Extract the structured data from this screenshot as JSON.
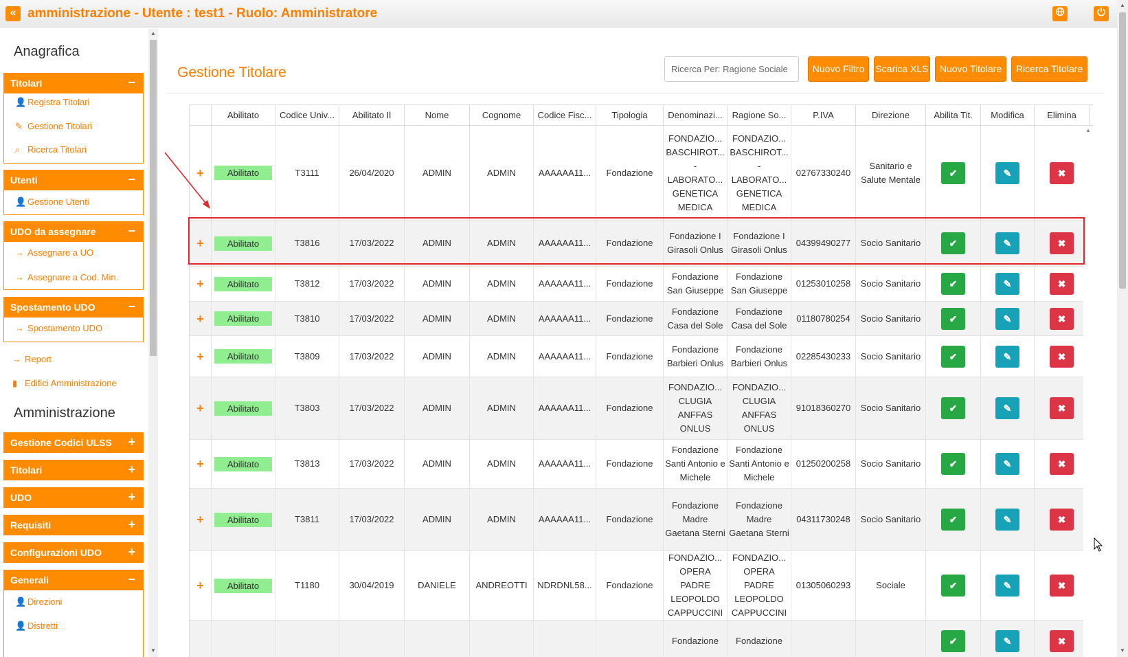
{
  "topbar": {
    "back_icon": "double-chevron-left-icon",
    "title": "amministrazione - Utente : test1 - Ruolo: Amministratore",
    "globe_icon": "globe-icon",
    "power_icon": "power-icon"
  },
  "sidebar": {
    "section1": "Anagrafica",
    "section2": "Amministrazione",
    "groups": {
      "titolari": {
        "label": "Titolari",
        "toggle": "−",
        "links": [
          "Registra Titolari",
          "Gestione Titolari",
          "Ricerca Titolari"
        ]
      },
      "utenti": {
        "label": "Utenti",
        "toggle": "−",
        "links": [
          "Gestione Utenti"
        ]
      },
      "udo": {
        "label": "UDO da assegnare",
        "toggle": "−",
        "links": [
          "Assegnare a UO",
          "Assegnare a Cod. Min."
        ]
      },
      "spostamento": {
        "label": "Spostamento UDO",
        "toggle": "−",
        "links": [
          "Spostamento UDO"
        ]
      },
      "generali": {
        "label": "Generali",
        "toggle": "−",
        "links": [
          "Direzioni",
          "Distretti"
        ]
      }
    },
    "plain_links": [
      "Report",
      "Edifici Amministrazione"
    ],
    "admin_groups": [
      {
        "label": "Gestione Codici ULSS",
        "toggle": "+"
      },
      {
        "label": "Titolari",
        "toggle": "+"
      },
      {
        "label": "UDO",
        "toggle": "+"
      },
      {
        "label": "Requisiti",
        "toggle": "+"
      },
      {
        "label": "Configurazioni UDO",
        "toggle": "+"
      }
    ]
  },
  "main": {
    "title": "Gestione Titolare",
    "search_value": "Ricerca Per:  Ragione Sociale",
    "buttons": {
      "nuovo_filtro": "Nuovo Filtro",
      "scarica_xls": "Scarica XLS",
      "nuovo_titolare": "Nuovo Titolare",
      "ricerca_titolare": "Ricerca Titolare"
    }
  },
  "table": {
    "columns": [
      "",
      "Abilitato",
      "Codice Univ...",
      "Abilitato Il",
      "Nome",
      "Cognome",
      "Codice Fisc...",
      "Tipologia",
      "Denominazi...",
      "Ragione So...",
      "P.IVA",
      "Direzione",
      "Abilita Tit.",
      "Modifica",
      "Elimina"
    ],
    "rows": [
      {
        "stato": "Abilitato",
        "codice": "T3111",
        "data": "26/04/2020",
        "nome": "ADMIN",
        "cognome": "ADMIN",
        "cf": "AAAAAA11...",
        "tipologia": "Fondazione",
        "denominazione": "FONDAZIO... BASCHIROT... - LABORATO... GENETICA MEDICA",
        "ragione": "FONDAZIO... BASCHIROT... - LABORATO... GENETICA MEDICA",
        "piva": "02767330240",
        "direzione": "Sanitario e Salute Mentale"
      },
      {
        "stato": "Abilitato",
        "codice": "T3816",
        "data": "17/03/2022",
        "nome": "ADMIN",
        "cognome": "ADMIN",
        "cf": "AAAAAA11...",
        "tipologia": "Fondazione",
        "denominazione": "Fondazione I Girasoli Onlus",
        "ragione": "Fondazione I Girasoli Onlus",
        "piva": "04399490277",
        "direzione": "Socio Sanitario"
      },
      {
        "stato": "Abilitato",
        "codice": "T3812",
        "data": "17/03/2022",
        "nome": "ADMIN",
        "cognome": "ADMIN",
        "cf": "AAAAAA11...",
        "tipologia": "Fondazione",
        "denominazione": "Fondazione San Giuseppe",
        "ragione": "Fondazione San Giuseppe",
        "piva": "01253010258",
        "direzione": "Socio Sanitario"
      },
      {
        "stato": "Abilitato",
        "codice": "T3810",
        "data": "17/03/2022",
        "nome": "ADMIN",
        "cognome": "ADMIN",
        "cf": "AAAAAA11...",
        "tipologia": "Fondazione",
        "denominazione": "Fondazione Casa del Sole",
        "ragione": "Fondazione Casa del Sole",
        "piva": "01180780254",
        "direzione": "Socio Sanitario"
      },
      {
        "stato": "Abilitato",
        "codice": "T3809",
        "data": "17/03/2022",
        "nome": "ADMIN",
        "cognome": "ADMIN",
        "cf": "AAAAAA11...",
        "tipologia": "Fondazione",
        "denominazione": "Fondazione Barbieri Onlus",
        "ragione": "Fondazione Barbieri Onlus",
        "piva": "02285430233",
        "direzione": "Socio Sanitario"
      },
      {
        "stato": "Abilitato",
        "codice": "T3803",
        "data": "17/03/2022",
        "nome": "ADMIN",
        "cognome": "ADMIN",
        "cf": "AAAAAA11...",
        "tipologia": "Fondazione",
        "denominazione": "FONDAZIO... CLUGIA ANFFAS ONLUS",
        "ragione": "FONDAZIO... CLUGIA ANFFAS ONLUS",
        "piva": "91018360270",
        "direzione": "Socio Sanitario"
      },
      {
        "stato": "Abilitato",
        "codice": "T3813",
        "data": "17/03/2022",
        "nome": "ADMIN",
        "cognome": "ADMIN",
        "cf": "AAAAAA11...",
        "tipologia": "Fondazione",
        "denominazione": "Fondazione Santi Antonio e Michele",
        "ragione": "Fondazione Santi Antonio e Michele",
        "piva": "01250200258",
        "direzione": "Socio Sanitario"
      },
      {
        "stato": "Abilitato",
        "codice": "T3811",
        "data": "17/03/2022",
        "nome": "ADMIN",
        "cognome": "ADMIN",
        "cf": "AAAAAA11...",
        "tipologia": "Fondazione",
        "denominazione": "Fondazione Madre Gaetana Sterni",
        "ragione": "Fondazione Madre Gaetana Sterni",
        "piva": "04311730248",
        "direzione": "Socio Sanitario"
      },
      {
        "stato": "Abilitato",
        "codice": "T1180",
        "data": "30/04/2019",
        "nome": "DANIELE",
        "cognome": "ANDREOTTI",
        "cf": "NDRDNL58...",
        "tipologia": "Fondazione",
        "denominazione": "FONDAZIO... OPERA PADRE LEOPOLDO CAPPUCCINI",
        "ragione": "FONDAZIO... OPERA PADRE LEOPOLDO CAPPUCCINI",
        "piva": "01305060293",
        "direzione": "Sociale"
      },
      {
        "stato": "",
        "codice": "",
        "data": "",
        "nome": "",
        "cognome": "",
        "cf": "",
        "tipologia": "",
        "denominazione": "Fondazione",
        "ragione": "Fondazione",
        "piva": "",
        "direzione": ""
      }
    ],
    "expand_symbol": "+",
    "action_icons": {
      "enable": "check-icon",
      "edit": "edit-icon",
      "delete": "x-icon"
    }
  },
  "colors": {
    "accent": "#ff8c00",
    "enabled_badge": "#90ee90",
    "btn_green": "#28a745",
    "btn_blue": "#17a2b8",
    "btn_red": "#dc3545",
    "highlight": "#e0282e"
  }
}
